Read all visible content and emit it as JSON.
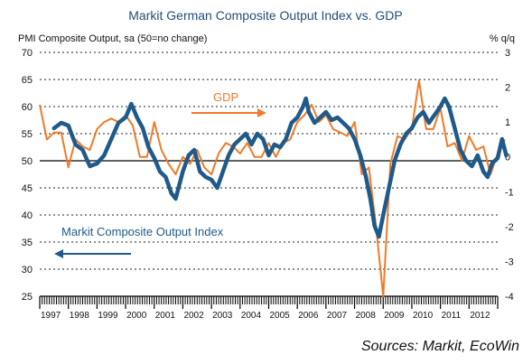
{
  "chart_data": {
    "type": "line",
    "title": "Markit German Composite Output Index vs. GDP",
    "ylabel_left": "PMI Composite Output, sa (50=no change)",
    "ylabel_right": "% q/q",
    "ylim_left": [
      25,
      70
    ],
    "ylim_right": [
      -4,
      3
    ],
    "yticks_left": [
      "70",
      "65",
      "60",
      "55",
      "50",
      "45",
      "40",
      "35",
      "30",
      "25"
    ],
    "yticks_right": [
      "3",
      "2",
      "1",
      "0",
      "-1",
      "-2",
      "-3",
      "-4"
    ],
    "x_labels": [
      "1997",
      "1998",
      "1999",
      "2000",
      "2001",
      "2002",
      "2003",
      "2004",
      "2005",
      "2006",
      "2007",
      "2008",
      "2009",
      "2010",
      "2011",
      "2012"
    ],
    "xlim": [
      1997.0,
      2013.0
    ],
    "grid": "horizontal dashed",
    "reference_line_left": 50,
    "colors": {
      "pmi": "#1f5a8b",
      "gdp": "#f07a28",
      "title": "#1f4e79"
    },
    "series": [
      {
        "name": "Markit Composite Output Index",
        "axis": "left",
        "points": [
          [
            1997.5,
            56
          ],
          [
            1997.75,
            57
          ],
          [
            1998.0,
            56.5
          ],
          [
            1998.25,
            53
          ],
          [
            1998.5,
            52
          ],
          [
            1998.75,
            49
          ],
          [
            1999.0,
            49.5
          ],
          [
            1999.25,
            51
          ],
          [
            1999.5,
            54
          ],
          [
            1999.75,
            57
          ],
          [
            2000.0,
            58
          ],
          [
            2000.2,
            60.5
          ],
          [
            2000.4,
            58
          ],
          [
            2000.6,
            56
          ],
          [
            2000.8,
            52.5
          ],
          [
            2001.0,
            50.5
          ],
          [
            2001.2,
            48
          ],
          [
            2001.4,
            47
          ],
          [
            2001.6,
            44
          ],
          [
            2001.75,
            43
          ],
          [
            2002.0,
            48
          ],
          [
            2002.2,
            51
          ],
          [
            2002.4,
            52
          ],
          [
            2002.5,
            50
          ],
          [
            2002.6,
            48
          ],
          [
            2002.8,
            47
          ],
          [
            2003.0,
            46.5
          ],
          [
            2003.2,
            45
          ],
          [
            2003.4,
            48
          ],
          [
            2003.6,
            51
          ],
          [
            2003.8,
            53
          ],
          [
            2004.0,
            54
          ],
          [
            2004.2,
            55
          ],
          [
            2004.4,
            53
          ],
          [
            2004.6,
            55
          ],
          [
            2004.8,
            54
          ],
          [
            2005.0,
            51
          ],
          [
            2005.2,
            53
          ],
          [
            2005.4,
            52.5
          ],
          [
            2005.6,
            54
          ],
          [
            2005.8,
            57
          ],
          [
            2006.0,
            58
          ],
          [
            2006.2,
            60
          ],
          [
            2006.3,
            61.5
          ],
          [
            2006.4,
            59
          ],
          [
            2006.6,
            57
          ],
          [
            2006.8,
            58
          ],
          [
            2007.0,
            59
          ],
          [
            2007.2,
            57.5
          ],
          [
            2007.4,
            58
          ],
          [
            2007.6,
            57
          ],
          [
            2007.8,
            56
          ],
          [
            2008.0,
            54
          ],
          [
            2008.2,
            51
          ],
          [
            2008.4,
            47
          ],
          [
            2008.55,
            43
          ],
          [
            2008.7,
            38
          ],
          [
            2008.85,
            36
          ],
          [
            2009.0,
            40
          ],
          [
            2009.2,
            45
          ],
          [
            2009.4,
            50
          ],
          [
            2009.6,
            53
          ],
          [
            2009.8,
            55
          ],
          [
            2010.0,
            56
          ],
          [
            2010.2,
            58
          ],
          [
            2010.4,
            59
          ],
          [
            2010.6,
            57
          ],
          [
            2010.8,
            58.5
          ],
          [
            2011.0,
            60
          ],
          [
            2011.15,
            61.5
          ],
          [
            2011.3,
            60
          ],
          [
            2011.5,
            56
          ],
          [
            2011.7,
            52
          ],
          [
            2011.9,
            50
          ],
          [
            2012.1,
            49
          ],
          [
            2012.3,
            51
          ],
          [
            2012.5,
            48
          ],
          [
            2012.65,
            47
          ],
          [
            2012.8,
            49.5
          ],
          [
            2013.0,
            50.5
          ],
          [
            2013.15,
            54
          ],
          [
            2013.3,
            51
          ]
        ]
      },
      {
        "name": "GDP",
        "axis": "right",
        "points": [
          [
            1997.0,
            1.5
          ],
          [
            1997.25,
            0.5
          ],
          [
            1997.5,
            0.7
          ],
          [
            1997.75,
            0.7
          ],
          [
            1998.0,
            -0.3
          ],
          [
            1998.25,
            0.5
          ],
          [
            1998.5,
            0.3
          ],
          [
            1998.75,
            0.2
          ],
          [
            1999.0,
            0.8
          ],
          [
            1999.25,
            1.0
          ],
          [
            1999.5,
            1.1
          ],
          [
            1999.75,
            1.0
          ],
          [
            2000.0,
            1.2
          ],
          [
            2000.25,
            0.9
          ],
          [
            2000.5,
            0.0
          ],
          [
            2000.75,
            0.0
          ],
          [
            2001.0,
            1.0
          ],
          [
            2001.25,
            0.2
          ],
          [
            2001.5,
            -0.2
          ],
          [
            2001.75,
            -0.5
          ],
          [
            2002.0,
            0.0
          ],
          [
            2002.25,
            -0.2
          ],
          [
            2002.5,
            0.2
          ],
          [
            2002.75,
            -0.3
          ],
          [
            2003.0,
            -0.5
          ],
          [
            2003.25,
            0.1
          ],
          [
            2003.5,
            0.4
          ],
          [
            2003.75,
            0.3
          ],
          [
            2004.0,
            0.1
          ],
          [
            2004.25,
            0.4
          ],
          [
            2004.5,
            0.0
          ],
          [
            2004.75,
            0.0
          ],
          [
            2005.0,
            0.4
          ],
          [
            2005.25,
            0.0
          ],
          [
            2005.5,
            0.4
          ],
          [
            2005.75,
            0.5
          ],
          [
            2006.0,
            1.0
          ],
          [
            2006.25,
            1.2
          ],
          [
            2006.5,
            1.5
          ],
          [
            2006.75,
            1.0
          ],
          [
            2007.0,
            1.2
          ],
          [
            2007.25,
            0.8
          ],
          [
            2007.5,
            0.7
          ],
          [
            2007.75,
            0.6
          ],
          [
            2008.0,
            1.0
          ],
          [
            2008.25,
            -0.5
          ],
          [
            2008.5,
            -0.3
          ],
          [
            2008.75,
            -2.0
          ],
          [
            2009.0,
            -4.0
          ],
          [
            2009.25,
            -0.2
          ],
          [
            2009.5,
            0.6
          ],
          [
            2009.75,
            0.5
          ],
          [
            2010.0,
            0.8
          ],
          [
            2010.25,
            2.2
          ],
          [
            2010.5,
            0.8
          ],
          [
            2010.75,
            0.8
          ],
          [
            2011.0,
            1.4
          ],
          [
            2011.25,
            0.3
          ],
          [
            2011.5,
            0.4
          ],
          [
            2011.75,
            -0.1
          ],
          [
            2012.0,
            0.6
          ],
          [
            2012.25,
            0.2
          ],
          [
            2012.5,
            0.3
          ],
          [
            2012.75,
            -0.5
          ],
          [
            2013.0,
            0.1
          ],
          [
            2013.25,
            0.5
          ]
        ]
      }
    ],
    "annotations": [
      {
        "text": "GDP",
        "color": "#f07a28",
        "arrow": "right"
      },
      {
        "text": "Markit Composite Output Index",
        "color": "#1f5a8b",
        "arrow": "left"
      }
    ]
  },
  "source": "Sources: Markit, EcoWin"
}
